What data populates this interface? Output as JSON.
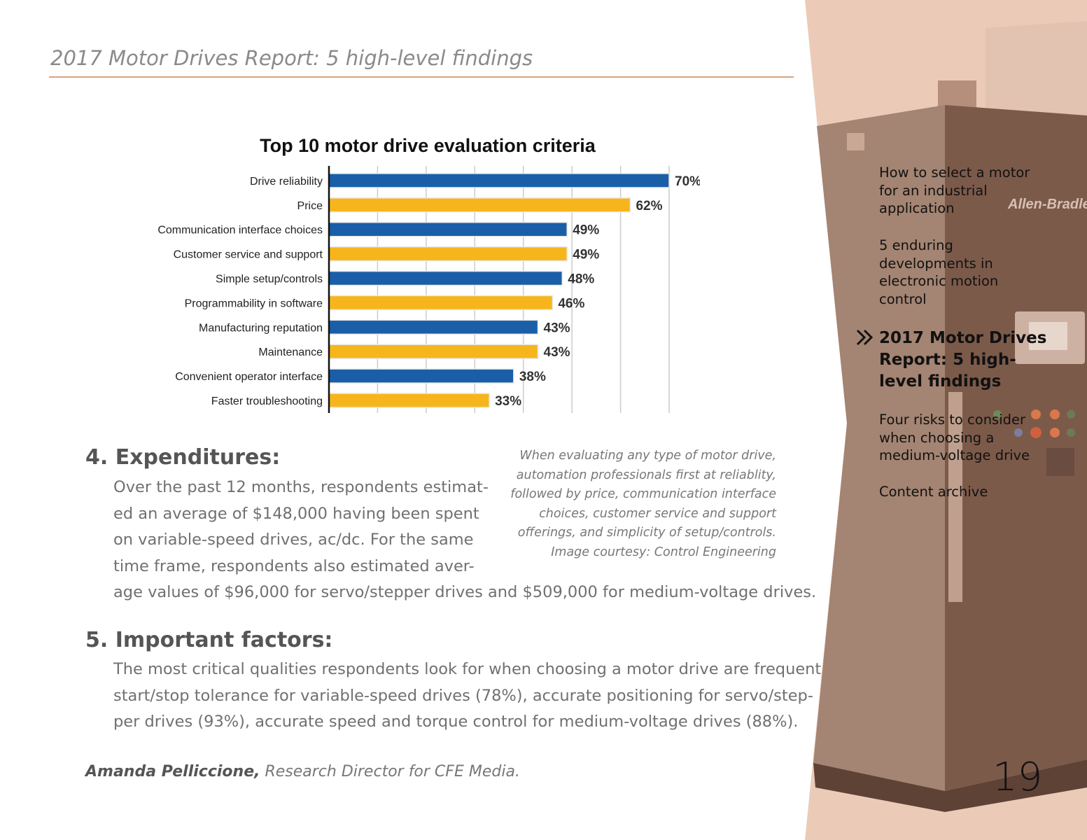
{
  "header": {
    "title": "2017 Motor Drives Report: 5 high-level findings"
  },
  "chart_data": {
    "type": "bar",
    "orientation": "horizontal",
    "title": "Top 10 motor drive evaluation criteria",
    "categories": [
      "Drive reliability",
      "Price",
      "Communication interface choices",
      "Customer service and support",
      "Simple setup/controls",
      "Programmability in software",
      "Manufacturing reputation",
      "Maintenance",
      "Convenient operator interface",
      "Faster troubleshooting"
    ],
    "values": [
      70,
      62,
      49,
      49,
      48,
      46,
      43,
      43,
      38,
      33
    ],
    "labels": [
      "70%",
      "62%",
      "49%",
      "49%",
      "48%",
      "46%",
      "43%",
      "43%",
      "38%",
      "33%"
    ],
    "colors": [
      "#1a5ea8",
      "#f7b51c"
    ],
    "xlim": [
      0,
      70
    ],
    "grid": true
  },
  "caption": [
    "When evaluating any type of motor drive,",
    "automation professionals first at reliablity,",
    "followed by price, communication interface",
    "choices, customer service and support",
    "offerings, and simplicity of setup/controls.",
    "Image courtesy: Control Engineering"
  ],
  "sections": [
    {
      "heading": "4. Expenditures:",
      "lines": [
        "Over the past 12 months, respondents estimat-",
        "ed an average of $148,000 having been spent",
        "on variable-speed drives, ac/dc. For the same",
        "time frame, respondents also estimated aver-",
        "age values of $96,000 for servo/stepper drives and $509,000 for medium-voltage drives."
      ]
    },
    {
      "heading": "5. Important factors:",
      "lines": [
        "The most critical qualities respondents look for when choosing a motor drive are frequent",
        "start/stop tolerance for variable-speed drives (78%), accurate positioning for servo/step-",
        "per drives (93%), accurate speed and torque control for medium-voltage drives (88%)."
      ]
    }
  ],
  "author": {
    "name": "Amanda Pelliccione,",
    "role": " Research Director for CFE Media."
  },
  "sidebar": {
    "items": [
      {
        "label": "How to select a motor for an industrial application"
      },
      {
        "label": "5 enduring developments in electronic motion control"
      },
      {
        "label": "2017 Motor Drives Report: 5 high-level findings",
        "active": true
      },
      {
        "label": "Four risks to consider when choosing a medium-voltage drive"
      },
      {
        "label": "Content archive"
      }
    ],
    "active_icon": "double-chevron-right-icon",
    "photo_brand": "Allen-Bradley"
  },
  "page_number": "19"
}
